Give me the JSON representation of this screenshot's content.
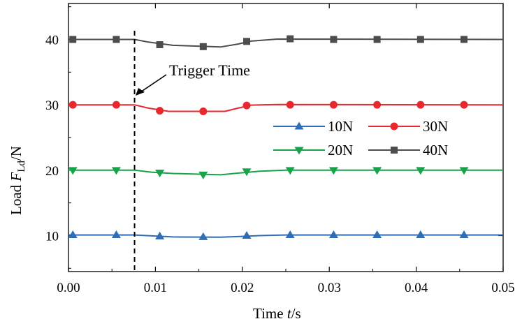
{
  "chart_data": {
    "type": "line",
    "xlabel_prefix": "Time ",
    "xlabel_var": "t",
    "xlabel_suffix": "/s",
    "ylabel_prefix": "Load ",
    "ylabel_var": "F",
    "ylabel_sub": "Ld",
    "ylabel_suffix": "/N",
    "xlim": [
      0,
      0.05
    ],
    "ylim": [
      4.5,
      45.5
    ],
    "x_ticks": [
      0.0,
      0.01,
      0.02,
      0.03,
      0.04,
      0.05
    ],
    "x_tick_labels": [
      "0.00",
      "0.01",
      "0.02",
      "0.03",
      "0.04",
      "0.05"
    ],
    "y_ticks": [
      10,
      20,
      30,
      40
    ],
    "y_tick_labels": [
      "10",
      "20",
      "30",
      "40"
    ],
    "annotation": {
      "text": "Trigger Time",
      "x": 0.0076
    },
    "x_points": [
      0.0005,
      0.0055,
      0.0105,
      0.0155,
      0.0205,
      0.0255,
      0.0305,
      0.0355,
      0.0405,
      0.0455
    ],
    "series": [
      {
        "name": "10N",
        "color": "#2f6db5",
        "marker": "triangle-up",
        "curve": [
          [
            0,
            10.1
          ],
          [
            0.0076,
            10.1
          ],
          [
            0.0098,
            9.95
          ],
          [
            0.012,
            9.8
          ],
          [
            0.0175,
            9.75
          ],
          [
            0.0195,
            9.85
          ],
          [
            0.022,
            10.0
          ],
          [
            0.025,
            10.1
          ],
          [
            0.05,
            10.1
          ]
        ],
        "values": [
          10.1,
          10.1,
          9.9,
          9.8,
          10.0,
          10.1,
          10.1,
          10.1,
          10.1,
          10.1
        ]
      },
      {
        "name": "30N",
        "color": "#e8272e",
        "marker": "circle",
        "curve": [
          [
            0,
            30.0
          ],
          [
            0.0076,
            30.0
          ],
          [
            0.0092,
            29.5
          ],
          [
            0.0115,
            29.0
          ],
          [
            0.018,
            29.0
          ],
          [
            0.0195,
            29.5
          ],
          [
            0.021,
            29.95
          ],
          [
            0.024,
            30.05
          ],
          [
            0.05,
            30.0
          ]
        ],
        "values": [
          30.0,
          30.0,
          29.1,
          29.0,
          29.9,
          30.0,
          30.0,
          30.0,
          30.0,
          30.0
        ]
      },
      {
        "name": "20N",
        "color": "#16a34a",
        "marker": "triangle-down",
        "curve": [
          [
            0,
            20.0
          ],
          [
            0.0076,
            20.0
          ],
          [
            0.0095,
            19.7
          ],
          [
            0.012,
            19.5
          ],
          [
            0.0175,
            19.3
          ],
          [
            0.0195,
            19.55
          ],
          [
            0.022,
            19.85
          ],
          [
            0.025,
            20.0
          ],
          [
            0.05,
            20.0
          ]
        ],
        "values": [
          20.0,
          20.0,
          19.6,
          19.3,
          19.8,
          20.0,
          20.0,
          20.0,
          20.0,
          20.0
        ]
      },
      {
        "name": "40N",
        "color": "#4d4d4d",
        "marker": "square",
        "curve": [
          [
            0,
            40.0
          ],
          [
            0.0076,
            40.0
          ],
          [
            0.0092,
            39.6
          ],
          [
            0.012,
            39.1
          ],
          [
            0.0175,
            38.85
          ],
          [
            0.0195,
            39.3
          ],
          [
            0.021,
            39.75
          ],
          [
            0.024,
            40.05
          ],
          [
            0.05,
            40.0
          ]
        ],
        "values": [
          40.0,
          40.0,
          39.2,
          38.9,
          39.7,
          40.1,
          40.0,
          40.0,
          40.0,
          40.0
        ]
      }
    ],
    "legend_order": [
      0,
      2,
      1,
      3
    ]
  }
}
